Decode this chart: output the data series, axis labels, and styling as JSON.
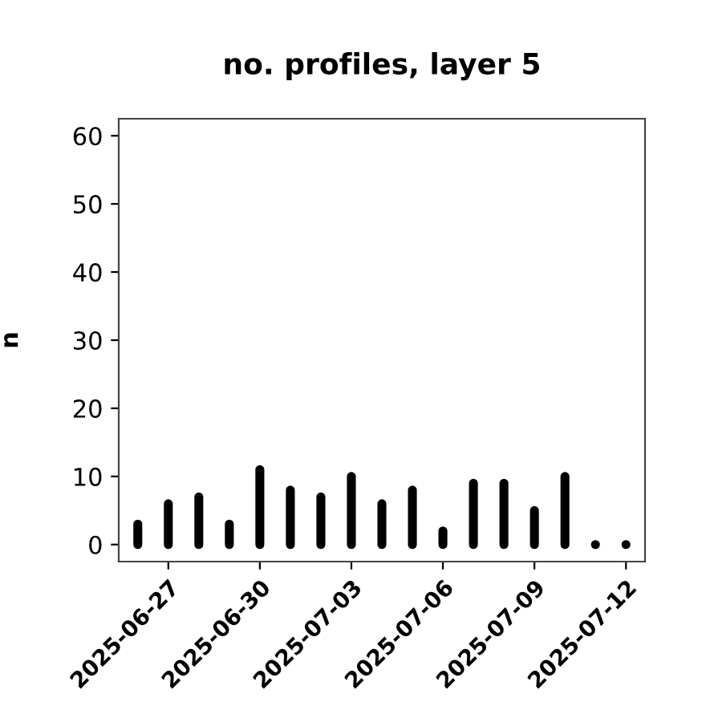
{
  "chart_data": {
    "type": "bar",
    "title": "no. profiles, layer 5",
    "ylabel": "n",
    "x": [
      "2025-06-26",
      "2025-06-27",
      "2025-06-28",
      "2025-06-29",
      "2025-06-30",
      "2025-07-01",
      "2025-07-02",
      "2025-07-03",
      "2025-07-04",
      "2025-07-05",
      "2025-07-06",
      "2025-07-07",
      "2025-07-08",
      "2025-07-09",
      "2025-07-10",
      "2025-07-11",
      "2025-07-12"
    ],
    "values": [
      3,
      6,
      7,
      3,
      11,
      8,
      7,
      10,
      6,
      8,
      2,
      9,
      9,
      5,
      10,
      0,
      0
    ],
    "color": "#000000",
    "xlim": [
      "2025-06-25T09:00",
      "2025-07-12T15:00"
    ],
    "xticks": [
      {
        "value": "2025-06-27",
        "label": "2025-06-27"
      },
      {
        "value": "2025-06-30",
        "label": "2025-06-30"
      },
      {
        "value": "2025-07-03",
        "label": "2025-07-03"
      },
      {
        "value": "2025-07-06",
        "label": "2025-07-06"
      },
      {
        "value": "2025-07-09",
        "label": "2025-07-09"
      },
      {
        "value": "2025-07-12",
        "label": "2025-07-12"
      }
    ],
    "ylim": [
      -2.5,
      62.5
    ],
    "yticks": [
      0,
      10,
      20,
      30,
      40,
      50,
      60
    ],
    "grid": false
  }
}
